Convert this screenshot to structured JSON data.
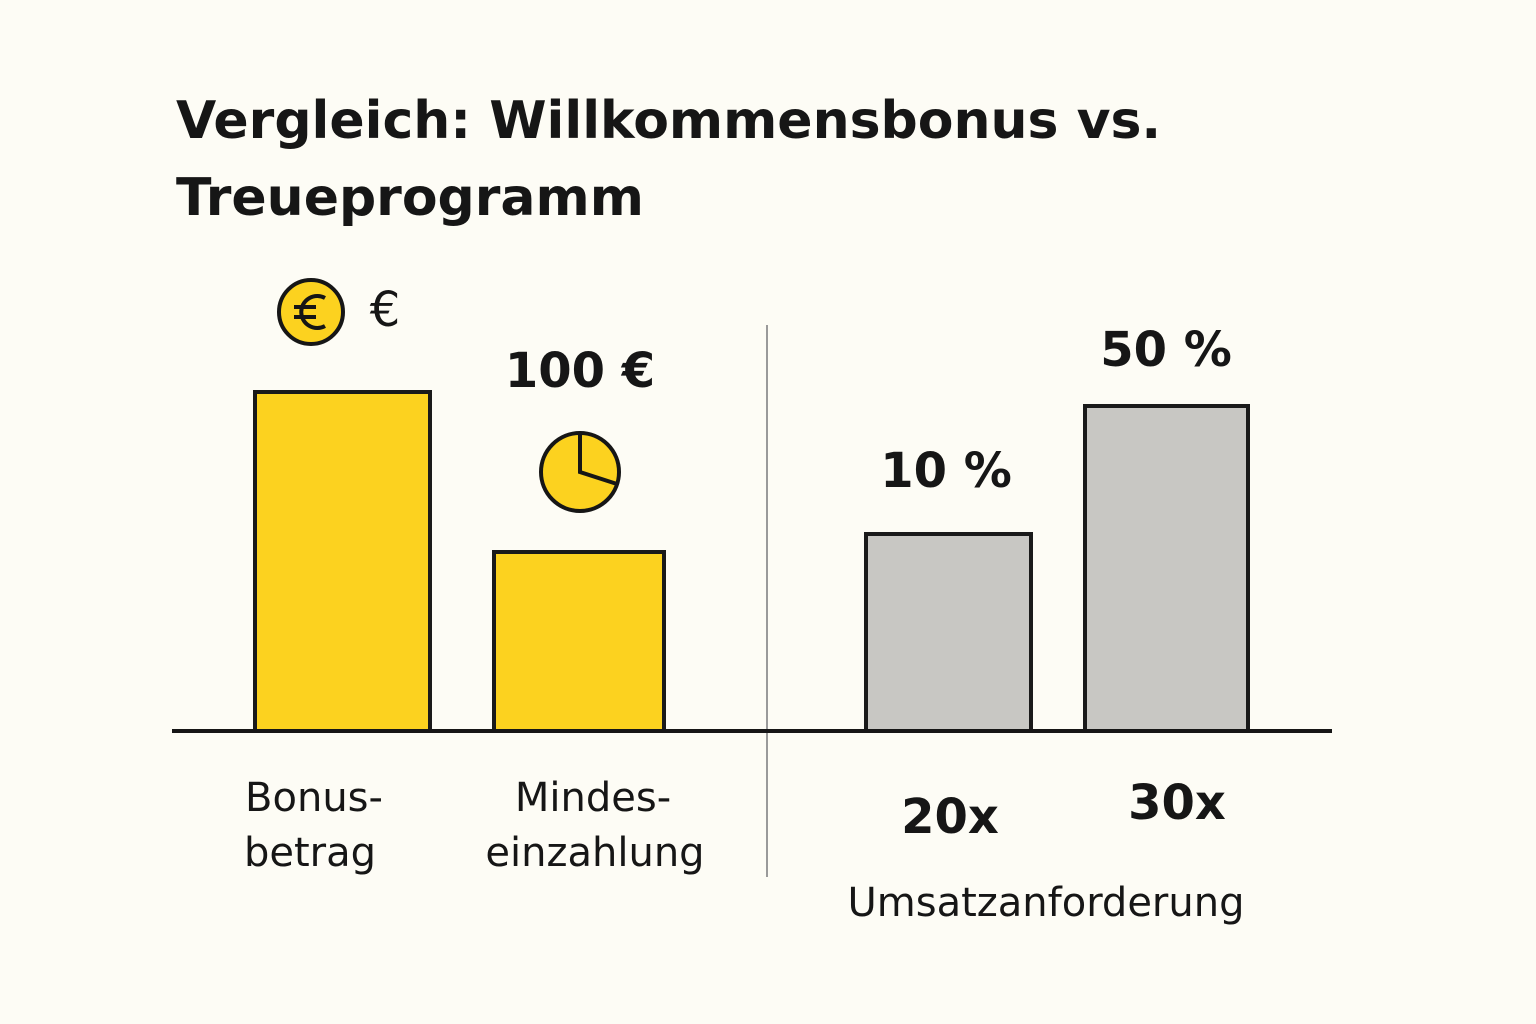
{
  "title": [
    "Vergleich: Willkommensbonus vs.",
    "Treueprogramm"
  ],
  "bars": [
    {
      "label": [
        "Bonus-",
        "betrag"
      ],
      "value_label": "€"
    },
    {
      "label": [
        "Mindes-",
        "einzahlung"
      ],
      "value_label": "100 €"
    },
    {
      "label": [
        "20x"
      ],
      "value_label": "10 %"
    },
    {
      "label": [
        "30x"
      ],
      "value_label": "50 %"
    }
  ],
  "group_label": "Umsatzanforderung"
}
